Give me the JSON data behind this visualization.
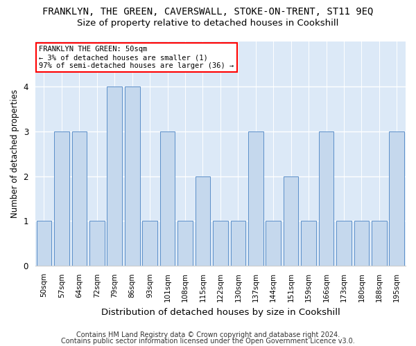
{
  "title": "FRANKLYN, THE GREEN, CAVERSWALL, STOKE-ON-TRENT, ST11 9EQ",
  "subtitle": "Size of property relative to detached houses in Cookshill",
  "xlabel": "Distribution of detached houses by size in Cookshill",
  "ylabel": "Number of detached properties",
  "footer_line1": "Contains HM Land Registry data © Crown copyright and database right 2024.",
  "footer_line2": "Contains public sector information licensed under the Open Government Licence v3.0.",
  "annotation_title": "FRANKLYN THE GREEN: 50sqm",
  "annotation_line2": "← 3% of detached houses are smaller (1)",
  "annotation_line3": "97% of semi-detached houses are larger (36) →",
  "categories": [
    "50sqm",
    "57sqm",
    "64sqm",
    "72sqm",
    "79sqm",
    "86sqm",
    "93sqm",
    "101sqm",
    "108sqm",
    "115sqm",
    "122sqm",
    "130sqm",
    "137sqm",
    "144sqm",
    "151sqm",
    "159sqm",
    "166sqm",
    "173sqm",
    "180sqm",
    "188sqm",
    "195sqm"
  ],
  "values": [
    1,
    3,
    3,
    1,
    4,
    4,
    1,
    3,
    1,
    2,
    1,
    1,
    3,
    1,
    2,
    1,
    3,
    1,
    1,
    1,
    3
  ],
  "bar_color": "#c5d8ed",
  "bar_edge_color": "#5b8fc9",
  "ylim": [
    0,
    5
  ],
  "yticks": [
    0,
    1,
    2,
    3,
    4,
    5
  ],
  "background_color": "#ffffff",
  "plot_bg_color": "#dce9f7",
  "grid_color": "#ffffff",
  "title_fontsize": 10,
  "subtitle_fontsize": 9.5,
  "xlabel_fontsize": 9.5,
  "ylabel_fontsize": 8.5,
  "tick_fontsize": 7.5,
  "footer_fontsize": 7
}
